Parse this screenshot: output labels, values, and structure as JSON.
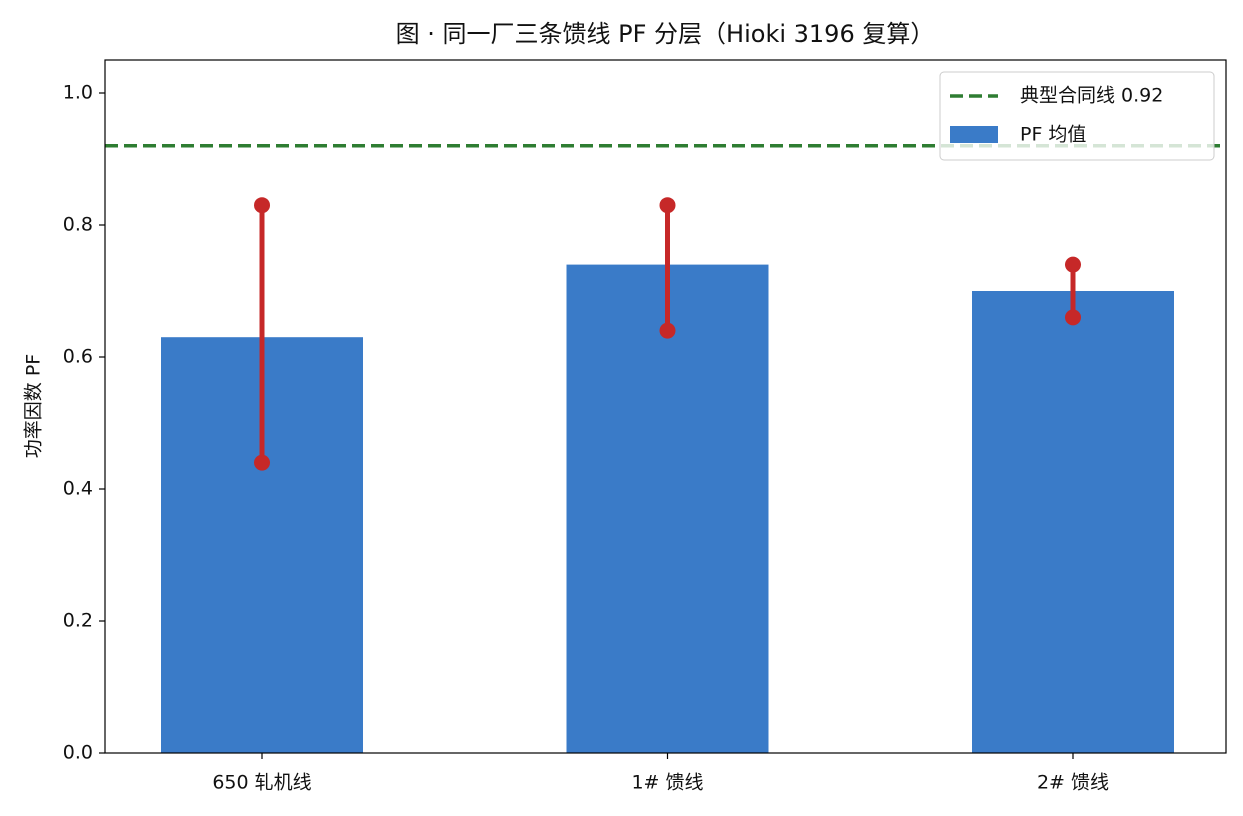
{
  "chart_data": {
    "type": "bar",
    "title": "图 · 同一厂三条馈线 PF 分层（Hioki 3196 复算）",
    "y_label": "功率因数 PF",
    "categories": [
      "650 轧机线",
      "1# 馈线",
      "2# 馈线"
    ],
    "series": [
      {
        "name": "PF 均值",
        "color": "#3a7bc8",
        "values": [
          0.63,
          0.74,
          0.7
        ]
      }
    ],
    "min_values": [
      0.44,
      0.64,
      0.66
    ],
    "max_values": [
      0.83,
      0.83,
      0.74
    ],
    "range_color": "#c62828",
    "reference_line": {
      "value": 0.92,
      "label": "典型合同线 0.92",
      "color": "#2e7d32"
    },
    "ylim": [
      0,
      1.05
    ],
    "yticks": [
      {
        "value": 0,
        "label": "0.0"
      },
      0.2,
      0.4,
      0.6,
      0.8,
      {
        "value": 1,
        "label": "1.0"
      }
    ],
    "legend": "upper right"
  }
}
